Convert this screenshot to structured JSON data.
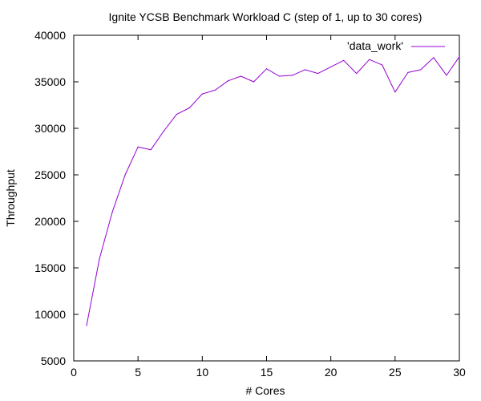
{
  "chart_data": {
    "type": "line",
    "title": "Ignite YCSB Benchmark Workload C (step of 1, up to 30 cores)",
    "xlabel": "# Cores",
    "ylabel": "Throughput",
    "xlim": [
      0,
      30
    ],
    "ylim": [
      5000,
      40000
    ],
    "xticks": [
      0,
      5,
      10,
      15,
      20,
      25,
      30
    ],
    "yticks": [
      5000,
      10000,
      15000,
      20000,
      25000,
      30000,
      35000,
      40000
    ],
    "grid": false,
    "legend_position": "top-right",
    "series": [
      {
        "name": "'data_work'",
        "color": "#9400d3",
        "x": [
          1,
          2,
          3,
          4,
          5,
          6,
          7,
          8,
          9,
          10,
          11,
          12,
          13,
          14,
          15,
          16,
          17,
          18,
          19,
          20,
          21,
          22,
          23,
          24,
          25,
          26,
          27,
          28,
          29,
          30
        ],
        "y": [
          8800,
          16000,
          21000,
          25000,
          28000,
          27700,
          29700,
          31500,
          32200,
          33700,
          34100,
          35100,
          35600,
          35000,
          36400,
          35600,
          35700,
          36300,
          35900,
          36600,
          37300,
          35900,
          37400,
          36800,
          33900,
          36000,
          36300,
          37600,
          35700,
          37700
        ]
      }
    ]
  }
}
